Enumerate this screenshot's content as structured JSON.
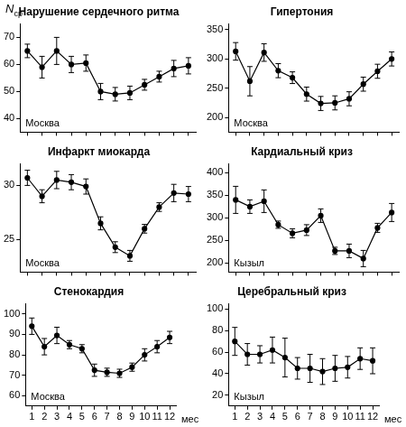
{
  "chart_data": [
    {
      "type": "line",
      "title": "Нарушение сердечного ритма",
      "annotation": "Москва",
      "ylabel": "N",
      "ylabel_subscript": "ср",
      "categories": [
        "1",
        "2",
        "3",
        "4",
        "5",
        "6",
        "7",
        "8",
        "9",
        "10",
        "11",
        "12"
      ],
      "values": [
        65,
        59,
        65,
        60,
        60.5,
        50,
        49,
        49.5,
        52.5,
        55.5,
        58.5,
        59.5
      ],
      "errors": [
        2.5,
        4,
        5,
        3,
        3,
        3,
        2.5,
        2.5,
        2,
        2,
        3,
        3
      ],
      "color": "#000000",
      "marker": "circle",
      "ylim": [
        35,
        75
      ],
      "yticks": [
        40,
        50,
        60,
        70
      ],
      "grid": false,
      "tick_labels": "y"
    },
    {
      "type": "line",
      "title": "Гипертония",
      "annotation": "Москва",
      "categories": [
        "1",
        "2",
        "3",
        "4",
        "5",
        "6",
        "7",
        "8",
        "9",
        "10",
        "11",
        "12"
      ],
      "values": [
        313,
        262,
        311,
        280,
        268,
        240,
        224,
        225,
        232,
        257,
        279,
        300
      ],
      "errors": [
        15,
        25,
        15,
        12,
        10,
        12,
        12,
        12,
        12,
        12,
        12,
        12
      ],
      "color": "#000000",
      "marker": "circle",
      "ylim": [
        175,
        360
      ],
      "yticks": [
        200,
        250,
        300,
        350
      ],
      "grid": false,
      "tick_labels": "y"
    },
    {
      "type": "line",
      "title": "Инфаркт миокарда",
      "annotation": "Москва",
      "categories": [
        "1",
        "2",
        "3",
        "4",
        "5",
        "6",
        "7",
        "8",
        "9",
        "10",
        "11",
        "12"
      ],
      "values": [
        30.7,
        29,
        30.5,
        30.3,
        29.9,
        26.5,
        24.3,
        23.5,
        26,
        28,
        29.3,
        29.2
      ],
      "errors": [
        0.7,
        0.6,
        0.8,
        0.7,
        0.7,
        0.6,
        0.5,
        0.5,
        0.4,
        0.4,
        0.8,
        0.7
      ],
      "color": "#000000",
      "marker": "circle",
      "ylim": [
        22,
        32
      ],
      "yticks": [
        25,
        30
      ],
      "grid": false,
      "tick_labels": "y"
    },
    {
      "type": "line",
      "title": "Кардиальный криз",
      "annotation": "Кызыл",
      "categories": [
        "1",
        "2",
        "3",
        "4",
        "5",
        "6",
        "7",
        "8",
        "9",
        "10",
        "11",
        "12"
      ],
      "values": [
        340,
        325,
        337,
        285,
        266,
        273,
        305,
        227,
        227,
        210,
        278,
        312
      ],
      "errors": [
        30,
        15,
        25,
        8,
        10,
        12,
        15,
        8,
        15,
        18,
        10,
        20
      ],
      "color": "#000000",
      "marker": "circle",
      "ylim": [
        180,
        420
      ],
      "yticks": [
        200,
        250,
        300,
        350,
        400
      ],
      "grid": false,
      "tick_labels": "y"
    },
    {
      "type": "line",
      "title": "Стенокардия",
      "annotation": "Москва",
      "xlabel": "мес",
      "categories": [
        "1",
        "2",
        "3",
        "4",
        "5",
        "6",
        "7",
        "8",
        "9",
        "10",
        "11",
        "12"
      ],
      "values": [
        94,
        84,
        89.5,
        85,
        83,
        72.5,
        71.5,
        71,
        74,
        80,
        84,
        88.5
      ],
      "errors": [
        4,
        4,
        4,
        2,
        2,
        3,
        2,
        2,
        2,
        3,
        3,
        3
      ],
      "color": "#000000",
      "marker": "circle",
      "ylim": [
        55,
        105
      ],
      "yticks": [
        60,
        70,
        80,
        90,
        100
      ],
      "grid": false,
      "tick_labels": true
    },
    {
      "type": "line",
      "title": "Церебральный криз",
      "annotation": "Кызыл",
      "xlabel": "мес",
      "categories": [
        "1",
        "2",
        "3",
        "4",
        "5",
        "6",
        "7",
        "8",
        "9",
        "10",
        "11",
        "12"
      ],
      "values": [
        70,
        58,
        58,
        62,
        55,
        45,
        45,
        42,
        45,
        46,
        54,
        52
      ],
      "errors": [
        13,
        10,
        8,
        12,
        18,
        10,
        13,
        12,
        12,
        10,
        10,
        12
      ],
      "color": "#000000",
      "marker": "circle",
      "ylim": [
        10,
        105
      ],
      "yticks": [
        20,
        40,
        60,
        80,
        100
      ],
      "grid": false,
      "tick_labels": true
    }
  ]
}
